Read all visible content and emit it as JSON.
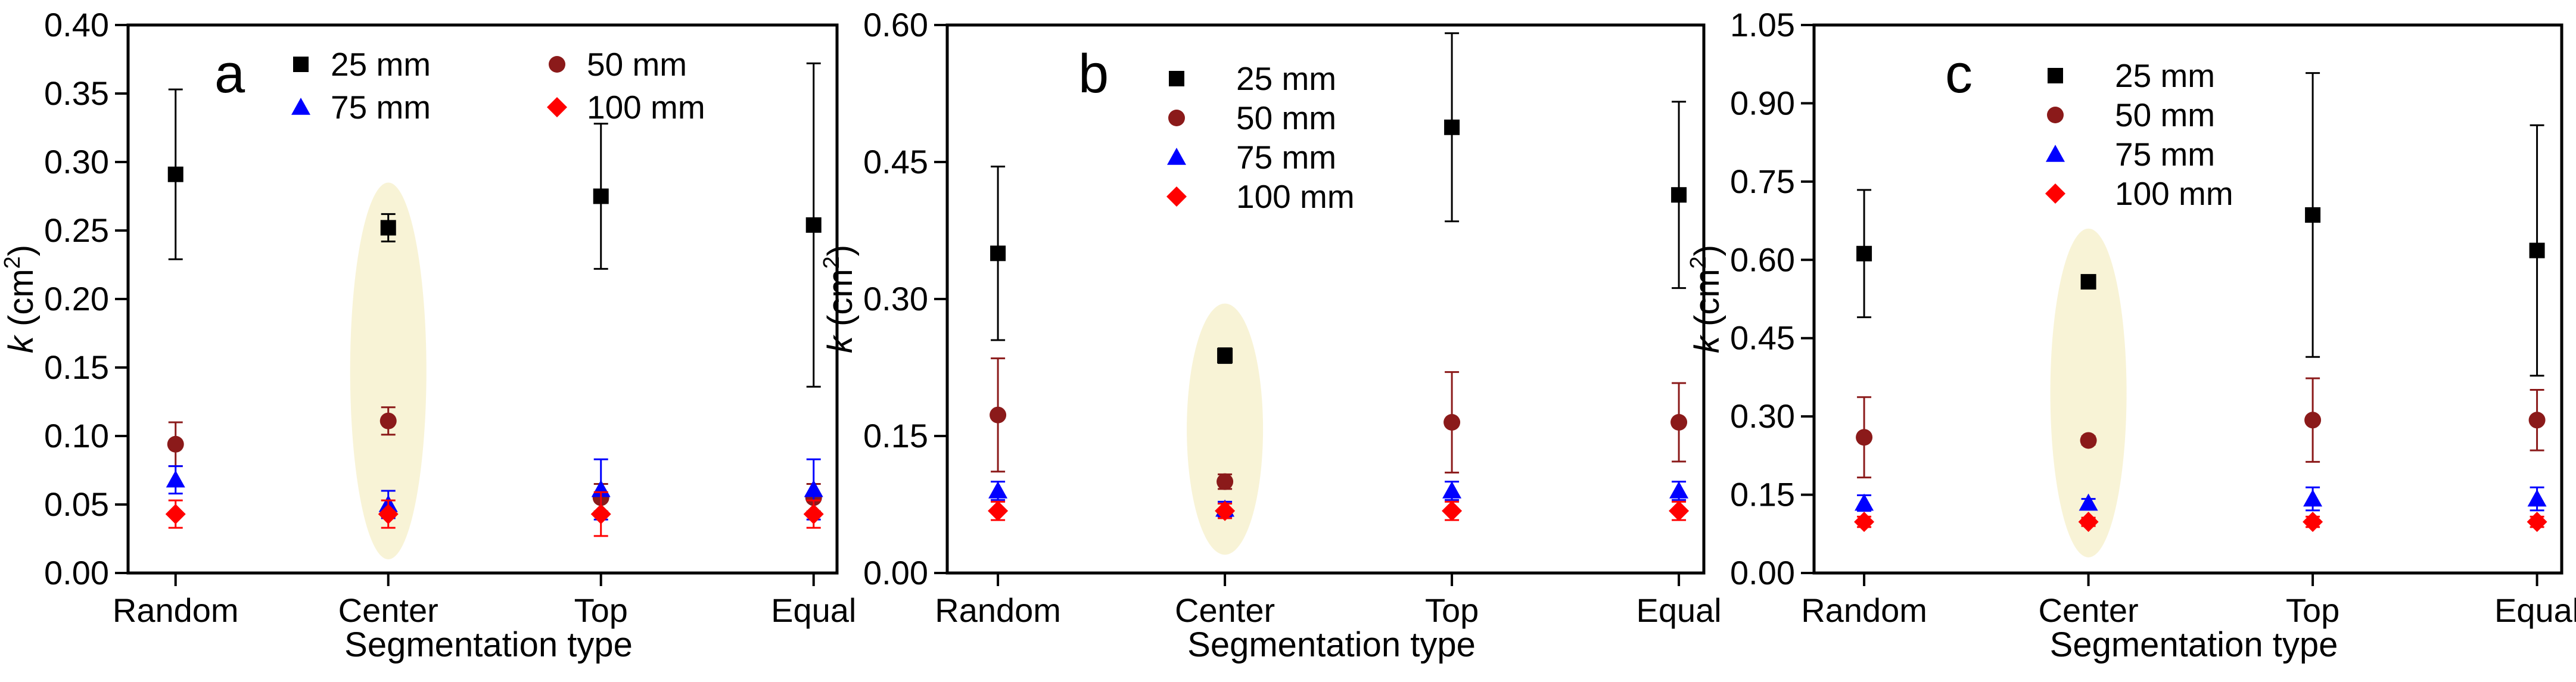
{
  "chart_data": [
    {
      "type": "scatter",
      "panel_label": "a",
      "xlabel": "Segmentation type",
      "ylabel_main": "k",
      "ylabel_unit": "(cm",
      "ylabel_sup": "2",
      "ylabel_close": ")",
      "categories": [
        "Random",
        "Center",
        "Top",
        "Equal"
      ],
      "ylim": [
        0,
        0.4
      ],
      "yticks": [
        "0.00",
        "0.05",
        "0.10",
        "0.15",
        "0.20",
        "0.25",
        "0.30",
        "0.35",
        "0.40"
      ],
      "legend_layout": "two-column",
      "highlight_category": 1,
      "highlight_range": [
        0.01,
        0.285
      ],
      "series": [
        {
          "name": "25 mm",
          "color": "#000000",
          "marker": "square",
          "values": [
            0.291,
            0.252,
            0.275,
            0.254
          ],
          "errors": [
            0.062,
            0.01,
            0.053,
            0.118
          ]
        },
        {
          "name": "50 mm",
          "color": "#8b1a1a",
          "marker": "circle",
          "values": [
            0.094,
            0.111,
            0.055,
            0.055
          ],
          "errors": [
            0.016,
            0.01,
            0.01,
            0.01
          ]
        },
        {
          "name": "75 mm",
          "color": "#0000ff",
          "marker": "triangle",
          "values": [
            0.068,
            0.05,
            0.061,
            0.061
          ],
          "errors": [
            0.01,
            0.01,
            0.022,
            0.022
          ]
        },
        {
          "name": "100 mm",
          "color": "#ff0000",
          "marker": "diamond",
          "values": [
            0.043,
            0.043,
            0.043,
            0.043
          ],
          "errors": [
            0.01,
            0.01,
            0.016,
            0.01
          ]
        }
      ]
    },
    {
      "type": "scatter",
      "panel_label": "b",
      "xlabel": "Segmentation type",
      "ylabel_main": "k",
      "ylabel_unit": "(cm",
      "ylabel_sup": "2",
      "ylabel_close": ")",
      "categories": [
        "Random",
        "Center",
        "Top",
        "Equal"
      ],
      "ylim": [
        0,
        0.6
      ],
      "yticks": [
        "0.00",
        "0.15",
        "0.30",
        "0.45",
        "0.60"
      ],
      "legend_layout": "one-column",
      "highlight_category": 1,
      "highlight_range": [
        0.02,
        0.295
      ],
      "series": [
        {
          "name": "25 mm",
          "color": "#000000",
          "marker": "square",
          "values": [
            0.35,
            0.238,
            0.488,
            0.414
          ],
          "errors": [
            0.095,
            0.008,
            0.103,
            0.102
          ]
        },
        {
          "name": "50 mm",
          "color": "#8b1a1a",
          "marker": "circle",
          "values": [
            0.173,
            0.1,
            0.165,
            0.165
          ],
          "errors": [
            0.062,
            0.008,
            0.055,
            0.043
          ]
        },
        {
          "name": "75 mm",
          "color": "#0000ff",
          "marker": "triangle",
          "values": [
            0.09,
            0.07,
            0.09,
            0.09
          ],
          "errors": [
            0.01,
            0.008,
            0.01,
            0.01
          ]
        },
        {
          "name": "100 mm",
          "color": "#ff0000",
          "marker": "diamond",
          "values": [
            0.068,
            0.068,
            0.068,
            0.068
          ],
          "errors": [
            0.01,
            0.008,
            0.01,
            0.01
          ]
        }
      ]
    },
    {
      "type": "scatter",
      "panel_label": "c",
      "xlabel": "Segmentation type",
      "ylabel_main": "k",
      "ylabel_unit": "(cm",
      "ylabel_sup": "2",
      "ylabel_close": ")",
      "categories": [
        "Random",
        "Center",
        "Top",
        "Equal"
      ],
      "ylim": [
        0,
        1.05
      ],
      "yticks": [
        "0.00",
        "0.15",
        "0.30",
        "0.45",
        "0.60",
        "0.75",
        "0.90",
        "1.05"
      ],
      "legend_layout": "one-column",
      "highlight_category": 1,
      "highlight_range": [
        0.03,
        0.66
      ],
      "series": [
        {
          "name": "25 mm",
          "color": "#000000",
          "marker": "square",
          "values": [
            0.612,
            0.558,
            0.686,
            0.618
          ],
          "errors": [
            0.122,
            0.008,
            0.272,
            0.24
          ]
        },
        {
          "name": "50 mm",
          "color": "#8b1a1a",
          "marker": "circle",
          "values": [
            0.26,
            0.254,
            0.293,
            0.293
          ],
          "errors": [
            0.077,
            0.008,
            0.08,
            0.058
          ]
        },
        {
          "name": "75 mm",
          "color": "#0000ff",
          "marker": "triangle",
          "values": [
            0.134,
            0.134,
            0.142,
            0.142
          ],
          "errors": [
            0.015,
            0.008,
            0.022,
            0.022
          ]
        },
        {
          "name": "100 mm",
          "color": "#ff0000",
          "marker": "diamond",
          "values": [
            0.098,
            0.098,
            0.098,
            0.098
          ],
          "errors": [
            0.01,
            0.008,
            0.01,
            0.01
          ]
        }
      ]
    }
  ]
}
